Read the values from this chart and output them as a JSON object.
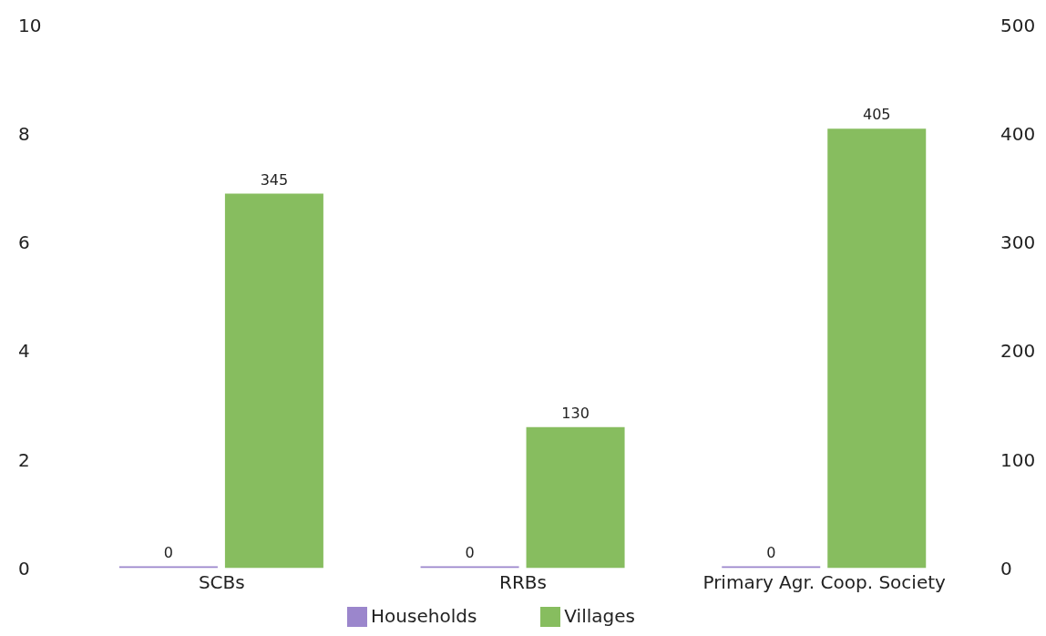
{
  "chart_data": {
    "type": "bar",
    "categories": [
      "SCBs",
      "RRBs",
      "Primary Agr. Coop. Society"
    ],
    "series": [
      {
        "name": "Households",
        "color": "#9b86cc",
        "values": [
          0,
          0,
          0
        ]
      },
      {
        "name": "Villages",
        "color": "#87bd5f",
        "values": [
          345,
          130,
          405
        ],
        "axis": "y2"
      }
    ],
    "ylim": [
      0,
      10
    ],
    "yticks": [
      0,
      2,
      4,
      6,
      8,
      10
    ],
    "y2lim": [
      0,
      500
    ],
    "y2ticks": [
      0,
      100,
      200,
      300,
      400,
      500
    ],
    "data_labels": true,
    "legend": "bottom",
    "grid": false
  }
}
